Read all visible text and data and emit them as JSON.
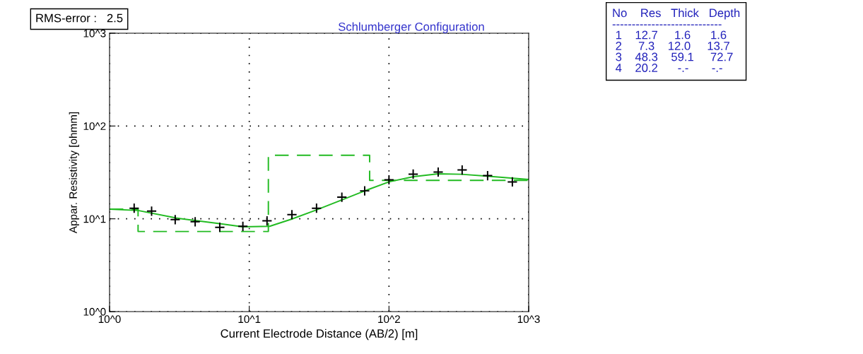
{
  "chart_data": {
    "type": "line",
    "title": "Schlumberger Configuration",
    "xlabel": "Current Electrode Distance (AB/2) [m]",
    "ylabel": "Appar. Resistivity [ohmm]",
    "log": "xy",
    "grid": true,
    "xlim": [
      1,
      1000
    ],
    "ylim": [
      1,
      1000
    ],
    "xticks": [
      {
        "value": 1,
        "label": "10^0"
      },
      {
        "value": 10,
        "label": "10^1"
      },
      {
        "value": 100,
        "label": "10^2"
      },
      {
        "value": 1000,
        "label": "10^3"
      }
    ],
    "yticks": [
      {
        "value": 1,
        "label": "10^0"
      },
      {
        "value": 10,
        "label": "10^1"
      },
      {
        "value": 100,
        "label": "10^2"
      },
      {
        "value": 1000,
        "label": "10^3"
      }
    ],
    "series": [
      {
        "type": "scatter",
        "marker": "cross",
        "color": "#000000",
        "x": [
          1.5,
          2.0,
          2.95,
          4.1,
          6.15,
          9.0,
          13.4,
          20.2,
          30.3,
          46,
          67,
          100,
          149,
          225,
          334,
          508,
          764
        ],
        "values": [
          13.0,
          12.1,
          9.8,
          9.3,
          8.1,
          8.3,
          9.5,
          11.1,
          13.0,
          17.1,
          20.0,
          26.3,
          30.3,
          31.9,
          33.6,
          29.2,
          25.0
        ]
      },
      {
        "line_style": "solid",
        "color": "#22bb22",
        "x": [
          1,
          1.6,
          3,
          6,
          9,
          14,
          20,
          30,
          50,
          70,
          100,
          150,
          225,
          330,
          500,
          1000
        ],
        "values": [
          12.7,
          12.3,
          10.2,
          8.9,
          8.2,
          8.3,
          9.9,
          12.4,
          16.8,
          20.5,
          25,
          28.5,
          30.5,
          30.2,
          28.8,
          26.5
        ]
      },
      {
        "line_style": "dashed",
        "color": "#22bb22",
        "x": [
          1,
          1.6,
          1.6,
          13.7,
          13.7,
          72.7,
          72.7,
          1000
        ],
        "values": [
          12.7,
          12.7,
          7.3,
          7.3,
          48.3,
          48.3,
          26,
          26
        ]
      }
    ],
    "annotations": [
      "RMS-error :   2.5",
      "No    Res   Thick   Depth\n----------------------------\n 1    12.7     1.6      1.6\n 2     7.3    12.0     13.7\n 3    48.3    59.1     72.7\n 4    20.2      -.-       -.-"
    ]
  }
}
